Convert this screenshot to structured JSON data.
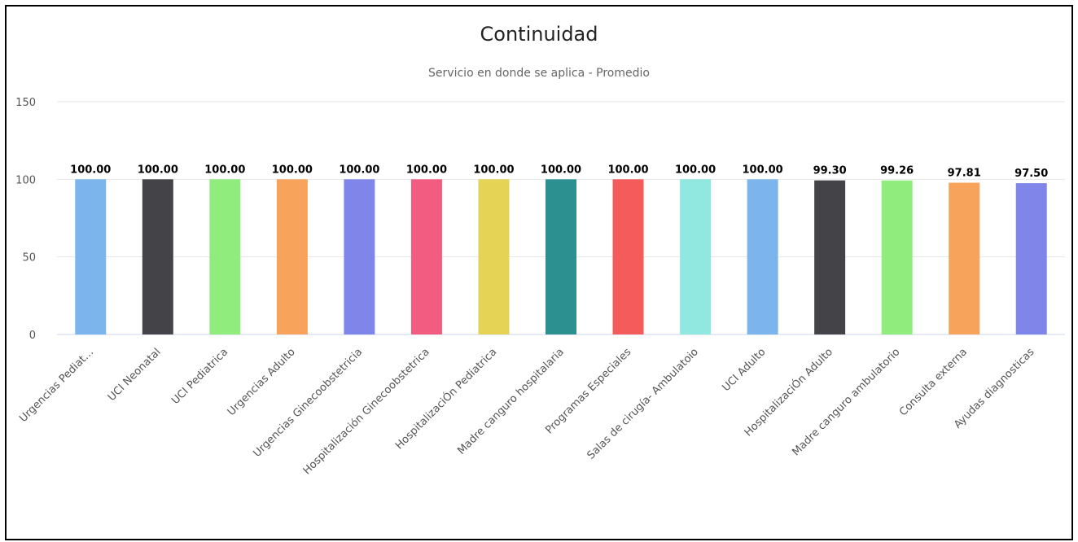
{
  "chart_data": {
    "type": "bar",
    "title": "Continuidad",
    "subtitle": "Servicio en donde se aplica - Promedio",
    "xlabel": "",
    "ylabel": "",
    "ylim": [
      0,
      150
    ],
    "yticks": [
      0,
      50,
      100,
      150
    ],
    "grid": true,
    "categories": [
      "Urgencias Pediat…",
      "UCI Neonatal",
      "UCI Pediatrica",
      "Urgencias Adulto",
      "Urgencias Ginecoobstetricia",
      "Hospitalización Ginecoobstetrica",
      "HospitalizaciÓn Pediatrica",
      "Madre canguro hospitalaria",
      "Programas Especiales",
      "Salas de cirugía- Ambulatoio",
      "UCI Adulto",
      "HospitalizaciÓn Adulto",
      "Madre canguro ambulatorio",
      "Consulta externa",
      "Ayudas diagnosticas"
    ],
    "values": [
      100.0,
      100.0,
      100.0,
      100.0,
      100.0,
      100.0,
      100.0,
      100.0,
      100.0,
      100.0,
      100.0,
      99.3,
      99.26,
      97.81,
      97.5
    ],
    "data_labels": [
      "100.00",
      "100.00",
      "100.00",
      "100.00",
      "100.00",
      "100.00",
      "100.00",
      "100.00",
      "100.00",
      "100.00",
      "100.00",
      "99.30",
      "99.26",
      "97.81",
      "97.50"
    ],
    "colors": [
      "#7cb5ec",
      "#434348",
      "#90ed7d",
      "#f7a35c",
      "#8085e9",
      "#f15c80",
      "#e4d354",
      "#2b908f",
      "#f45b5b",
      "#91e8e1",
      "#7cb5ec",
      "#434348",
      "#90ed7d",
      "#f7a35c",
      "#8085e9"
    ]
  }
}
